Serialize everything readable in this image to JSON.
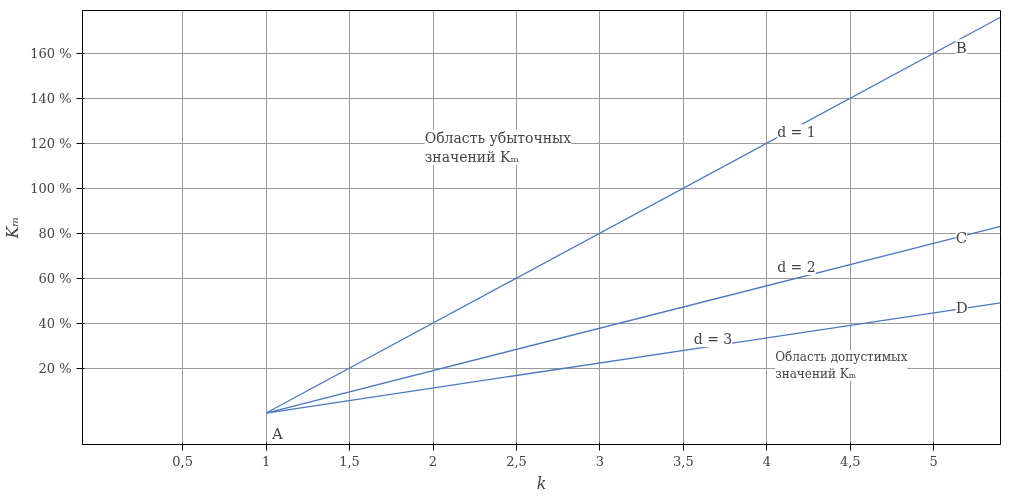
{
  "chart_data": {
    "type": "line",
    "xlabel": "k",
    "ylabel": "Kₘ",
    "x": [
      1,
      5.4
    ],
    "series": [
      {
        "color": "#4a78c2",
        "values": [
          0,
          176
        ]
      },
      {
        "color": "#4a78c2",
        "values": [
          0,
          83
        ]
      },
      {
        "color": "#4a78c2",
        "values": [
          0,
          49
        ]
      }
    ],
    "xlim": [
      -0.1,
      5.4
    ],
    "ylim": [
      -14,
      179
    ],
    "xticks": [
      {
        "value": 0.5,
        "label": "0,5"
      },
      1,
      {
        "value": 1.5,
        "label": "1,5"
      },
      2,
      {
        "value": 2.5,
        "label": "2,5"
      },
      3,
      {
        "value": 3.5,
        "label": "3,5"
      },
      4,
      {
        "value": 4.5,
        "label": "4,5"
      },
      5
    ],
    "yticks": [
      {
        "value": 20,
        "label": "20 %"
      },
      {
        "value": 40,
        "label": "40 %"
      },
      {
        "value": 60,
        "label": "60 %"
      },
      {
        "value": 80,
        "label": "80 %"
      },
      {
        "value": 100,
        "label": "100 %"
      },
      {
        "value": 120,
        "label": "120 %"
      },
      {
        "value": 140,
        "label": "140 %"
      },
      {
        "value": 160,
        "label": "160 %"
      }
    ],
    "grid": true,
    "marker": "none",
    "line_style": "solid",
    "annotations": [
      {
        "text": "A",
        "x": 1,
        "y": 0
      },
      {
        "text": "B",
        "x": 5,
        "y": 160
      },
      {
        "text": "C",
        "x": 5,
        "y": 75.5
      },
      {
        "text": "D",
        "x": 5,
        "y": 44.5
      },
      {
        "text": "d = 1",
        "x": 4.05,
        "y": 120
      },
      {
        "text": "d = 2",
        "x": 4.05,
        "y": 60
      },
      {
        "text": "d = 3",
        "x": 3.55,
        "y": 28
      },
      "Область убыточных значений Kₘ",
      "Область допустимых значений Kₘ"
    ]
  }
}
